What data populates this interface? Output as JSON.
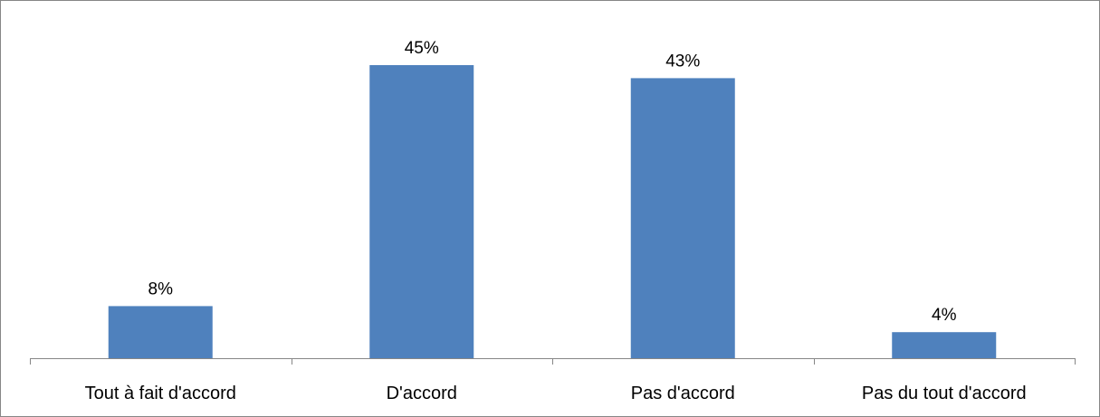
{
  "chart_data": {
    "type": "bar",
    "title": "",
    "xlabel": "",
    "ylabel": "",
    "categories": [
      "Tout à fait d'accord",
      "D'accord",
      "Pas d'accord",
      "Pas du tout d'accord"
    ],
    "values": [
      8,
      45,
      43,
      4
    ],
    "data_labels": [
      "8%",
      "45%",
      "43%",
      "4%"
    ],
    "unit": "%",
    "ylim": [
      0,
      50
    ],
    "grid": false,
    "legend": "none",
    "bar_color": "#4F81BD"
  }
}
